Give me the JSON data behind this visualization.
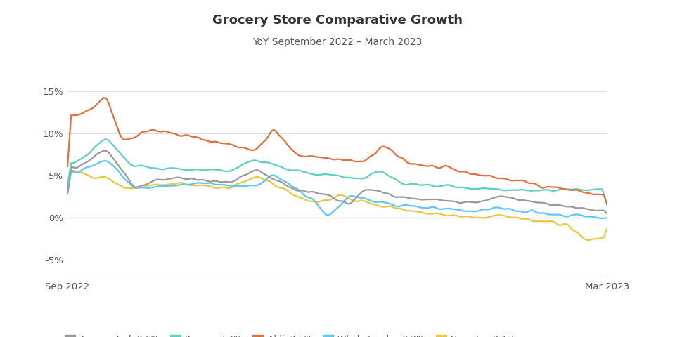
{
  "title": "Grocery Store Comparative Growth",
  "subtitle": "YoY September 2022 – March 2023",
  "ylim": [
    -7,
    17
  ],
  "yticks": [
    -5,
    0,
    5,
    10,
    15
  ],
  "ytick_labels": [
    "-5%",
    "0%",
    "5%",
    "10%",
    "15%"
  ],
  "series": {
    "Aggregated: 0.6%": {
      "color": "#999999",
      "linewidth": 1.6
    },
    "Kroger: 3.4%": {
      "color": "#5ecfbf",
      "linewidth": 1.6
    },
    "Aldi: 2.5%": {
      "color": "#e07040",
      "linewidth": 1.6
    },
    "Whole Foods: -0.2%": {
      "color": "#5bc8f5",
      "linewidth": 1.6
    },
    "Sprouts: -2.1%": {
      "color": "#e8c840",
      "linewidth": 1.6
    }
  },
  "bg_color": "#ffffff",
  "n_points": 300
}
